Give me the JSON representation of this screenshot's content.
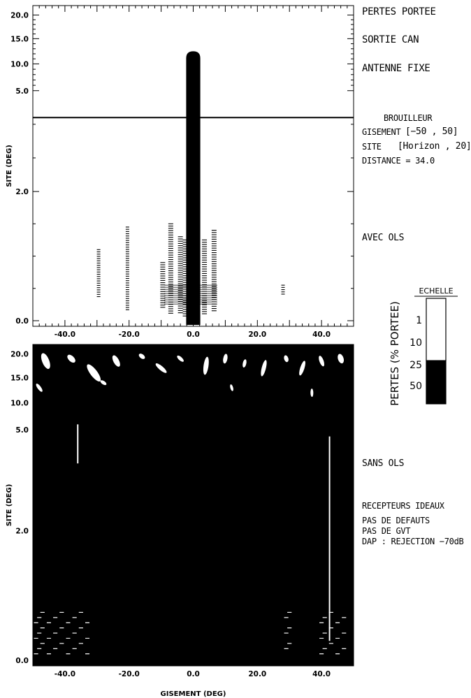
{
  "side_labels": {
    "pertes_portee": "PERTES PORTEE",
    "sortie_can": "SORTIE CAN",
    "antenne_fixe": "ANTENNE FIXE",
    "brouilleur": "BROUILLEUR",
    "gisement_label": "GISEMENT",
    "gisement_range": "[−50 , 50]",
    "site_label": "SITE",
    "site_range": "[Horizon , 20]",
    "distance": "DISTANCE = 34.0",
    "avec_ols": "AVEC OLS",
    "sans_ols": "SANS OLS",
    "recepteurs": "RECEPTEURS IDEAUX",
    "pas_defauts": "PAS DE DEFAUTS",
    "pas_gvt": "PAS DE GVT",
    "dap": "DAP : REJECTION −70dB"
  },
  "legend": {
    "title": "ECHELLE",
    "axis_label": "PERTES (% PORTEE)",
    "levels": [
      "1",
      "10",
      "25",
      "50"
    ],
    "colors": {
      "low": "#ffffff",
      "high": "#000000"
    }
  },
  "chart_data": [
    {
      "type": "heatmap",
      "title": "AVEC OLS",
      "xlabel": "",
      "ylabel": "SITE (DEG)",
      "xlim": [
        -50,
        50
      ],
      "ylim": [
        0,
        20
      ],
      "x_ticks": [
        "-40.0",
        "-20.0",
        "0.0",
        "20.0",
        "40.0"
      ],
      "y_ticks": [
        "0.0",
        "2.0",
        "5.0",
        "10.0",
        "15.0",
        "20.0"
      ],
      "mainlobe": {
        "x_center": 0.0,
        "x_halfwidth": 1.0,
        "y_top": 12.5
      },
      "horizon_line_site": 4.2,
      "sidelobes": [
        {
          "x": -29.5,
          "y_min": 0.35,
          "y_max": 1.1
        },
        {
          "x": -20.5,
          "y_min": 0.15,
          "y_max": 1.45
        },
        {
          "x": -9.5,
          "y_min": 0.2,
          "y_max": 0.9
        },
        {
          "x": -7.0,
          "y_min": 0.1,
          "y_max": 1.5
        },
        {
          "x": -4.0,
          "y_min": 0.1,
          "y_max": 1.3
        },
        {
          "x": -2.5,
          "y_min": 0.05,
          "y_max": 1.25
        },
        {
          "x": 3.5,
          "y_min": 0.1,
          "y_max": 1.25
        },
        {
          "x": 6.5,
          "y_min": 0.15,
          "y_max": 1.4
        },
        {
          "x": 28.0,
          "y_min": 0.4,
          "y_max": 0.55
        }
      ]
    },
    {
      "type": "heatmap",
      "title": "SANS OLS",
      "xlabel": "GISEMENT (DEG)",
      "ylabel": "SITE (DEG)",
      "xlim": [
        -50,
        50
      ],
      "ylim": [
        0,
        20
      ],
      "x_ticks": [
        "-40.0",
        "-20.0",
        "0.0",
        "20.0",
        "40.0"
      ],
      "y_ticks": [
        "0.0",
        "2.0",
        "5.0",
        "10.0",
        "15.0",
        "20.0"
      ],
      "fill": "mostly losses > 25%",
      "vertical_lines": [
        {
          "x": -36.0,
          "y_min": 4.0,
          "y_max": 6.0
        },
        {
          "x": 42.5,
          "y_min": 0.3,
          "y_max": 4.8
        }
      ]
    }
  ]
}
